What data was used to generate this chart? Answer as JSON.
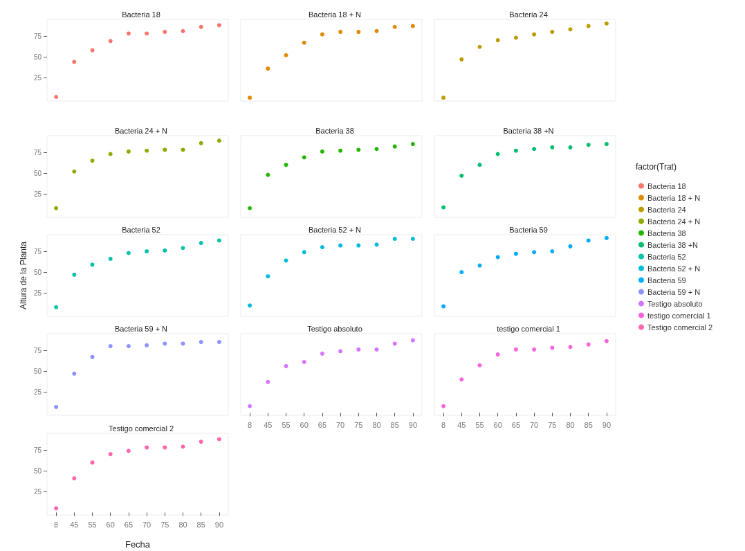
{
  "chart_data": [
    {
      "type": "scatter",
      "title": "Bacteria 18",
      "categories": [
        "8",
        "45",
        "55",
        "60",
        "65",
        "70",
        "75",
        "80",
        "85",
        "90"
      ],
      "ylim": [
        -3,
        95
      ],
      "yticks": [
        25,
        50,
        75
      ],
      "marker": "circle",
      "tick_labels": "y",
      "legend": "right",
      "legend_title": "factor(Trat)",
      "series": [
        {
          "name": "Bacteria 18",
          "color": "#f8766d",
          "values": [
            2,
            44,
            58,
            69,
            78,
            78,
            80,
            81,
            86,
            88
          ]
        }
      ]
    },
    {
      "type": "scatter",
      "title": "Bacteria 18 + N",
      "categories": [
        "8",
        "45",
        "55",
        "60",
        "65",
        "70",
        "75",
        "80",
        "85",
        "90"
      ],
      "ylim": [
        -3,
        95
      ],
      "yticks": [
        25,
        50,
        75
      ],
      "marker": "circle",
      "tick_labels": false,
      "series": [
        {
          "name": "Bacteria 18 + N",
          "color": "#e18a00",
          "values": [
            1,
            36,
            52,
            67,
            77,
            80,
            80,
            81,
            86,
            87
          ]
        }
      ]
    },
    {
      "type": "scatter",
      "title": "Bacteria 24",
      "categories": [
        "8",
        "45",
        "55",
        "60",
        "65",
        "70",
        "75",
        "80",
        "85",
        "90"
      ],
      "ylim": [
        -3,
        95
      ],
      "yticks": [
        25,
        50,
        75
      ],
      "marker": "circle",
      "tick_labels": false,
      "series": [
        {
          "name": "Bacteria 24",
          "color": "#be9c00",
          "values": [
            1,
            47,
            62,
            70,
            73,
            77,
            80,
            83,
            87,
            90
          ]
        }
      ]
    },
    {
      "type": "scatter",
      "title": "Bacteria 24 + N",
      "categories": [
        "8",
        "45",
        "55",
        "60",
        "65",
        "70",
        "75",
        "80",
        "85",
        "90"
      ],
      "ylim": [
        -3,
        95
      ],
      "yticks": [
        25,
        50,
        75
      ],
      "marker": "circle",
      "tick_labels": "y",
      "series": [
        {
          "name": "Bacteria 24 + N",
          "color": "#8cab00",
          "values": [
            8,
            52,
            65,
            73,
            76,
            77,
            78,
            78,
            86,
            89
          ]
        }
      ]
    },
    {
      "type": "scatter",
      "title": "Bacteria 38",
      "categories": [
        "8",
        "45",
        "55",
        "60",
        "65",
        "70",
        "75",
        "80",
        "85",
        "90"
      ],
      "ylim": [
        -3,
        95
      ],
      "yticks": [
        25,
        50,
        75
      ],
      "marker": "circle",
      "tick_labels": false,
      "series": [
        {
          "name": "Bacteria 38",
          "color": "#24b700",
          "values": [
            8,
            48,
            60,
            69,
            76,
            77,
            78,
            79,
            82,
            85
          ]
        }
      ]
    },
    {
      "type": "scatter",
      "title": "Bacteria 38 +N",
      "categories": [
        "8",
        "45",
        "55",
        "60",
        "65",
        "70",
        "75",
        "80",
        "85",
        "90"
      ],
      "ylim": [
        -3,
        95
      ],
      "yticks": [
        25,
        50,
        75
      ],
      "marker": "circle",
      "tick_labels": false,
      "series": [
        {
          "name": "Bacteria 38 +N",
          "color": "#00be70",
          "values": [
            9,
            47,
            60,
            73,
            77,
            79,
            81,
            81,
            84,
            85
          ]
        }
      ]
    },
    {
      "type": "scatter",
      "title": "Bacteria 52",
      "ylabel": "Altura de la Planta",
      "categories": [
        "8",
        "45",
        "55",
        "60",
        "65",
        "70",
        "75",
        "80",
        "85",
        "90"
      ],
      "ylim": [
        -3,
        95
      ],
      "yticks": [
        25,
        50,
        75
      ],
      "marker": "circle",
      "tick_labels": "y",
      "series": [
        {
          "name": "Bacteria 52",
          "color": "#00c1ab",
          "values": [
            8,
            47,
            59,
            66,
            73,
            75,
            76,
            79,
            85,
            88
          ]
        }
      ]
    },
    {
      "type": "scatter",
      "title": "Bacteria 52 + N",
      "categories": [
        "8",
        "45",
        "55",
        "60",
        "65",
        "70",
        "75",
        "80",
        "85",
        "90"
      ],
      "ylim": [
        -3,
        95
      ],
      "yticks": [
        25,
        50,
        75
      ],
      "marker": "circle",
      "tick_labels": false,
      "series": [
        {
          "name": "Bacteria 52 + N",
          "color": "#00bbda",
          "values": [
            10,
            45,
            64,
            74,
            80,
            82,
            82,
            83,
            90,
            90
          ]
        }
      ]
    },
    {
      "type": "scatter",
      "title": "Bacteria 59",
      "categories": [
        "8",
        "45",
        "55",
        "60",
        "65",
        "70",
        "75",
        "80",
        "85",
        "90"
      ],
      "ylim": [
        -3,
        95
      ],
      "yticks": [
        25,
        50,
        75
      ],
      "marker": "circle",
      "tick_labels": false,
      "series": [
        {
          "name": "Bacteria 59",
          "color": "#00acfc",
          "values": [
            9,
            50,
            58,
            68,
            72,
            74,
            75,
            81,
            88,
            91
          ]
        }
      ]
    },
    {
      "type": "scatter",
      "title": "Bacteria 59 + N",
      "categories": [
        "8",
        "45",
        "55",
        "60",
        "65",
        "70",
        "75",
        "80",
        "85",
        "90"
      ],
      "ylim": [
        -3,
        95
      ],
      "yticks": [
        25,
        50,
        75
      ],
      "marker": "circle",
      "tick_labels": "y",
      "series": [
        {
          "name": "Bacteria 59 + N",
          "color": "#8b93ff",
          "values": [
            7,
            47,
            67,
            80,
            80,
            81,
            83,
            83,
            85,
            85
          ]
        }
      ]
    },
    {
      "type": "scatter",
      "title": "Testigo absoluto",
      "categories": [
        "8",
        "45",
        "55",
        "60",
        "65",
        "70",
        "75",
        "80",
        "85",
        "90"
      ],
      "ylim": [
        -3,
        95
      ],
      "yticks": [
        25,
        50,
        75
      ],
      "marker": "circle",
      "tick_labels": "x",
      "series": [
        {
          "name": "Testigo absoluto",
          "color": "#d575fe",
          "values": [
            8,
            37,
            56,
            61,
            71,
            74,
            76,
            76,
            83,
            87
          ]
        }
      ]
    },
    {
      "type": "scatter",
      "title": "testigo comercial 1",
      "categories": [
        "8",
        "45",
        "55",
        "60",
        "65",
        "70",
        "75",
        "80",
        "85",
        "90"
      ],
      "ylim": [
        -3,
        95
      ],
      "yticks": [
        25,
        50,
        75
      ],
      "marker": "circle",
      "tick_labels": "x",
      "series": [
        {
          "name": "testigo comercial 1",
          "color": "#f962dd",
          "values": [
            8,
            40,
            57,
            70,
            76,
            76,
            78,
            79,
            82,
            86
          ]
        }
      ]
    },
    {
      "type": "scatter",
      "title": "Testigo comercial 2",
      "xlabel": "Fecha",
      "categories": [
        "8",
        "45",
        "55",
        "60",
        "65",
        "70",
        "75",
        "80",
        "85",
        "90"
      ],
      "ylim": [
        -3,
        95
      ],
      "yticks": [
        25,
        50,
        75
      ],
      "marker": "circle",
      "series": [
        {
          "name": "Testigo comercial 2",
          "color": "#ff65ac",
          "values": [
            5,
            41,
            60,
            70,
            74,
            78,
            78,
            79,
            85,
            88
          ]
        }
      ]
    }
  ]
}
